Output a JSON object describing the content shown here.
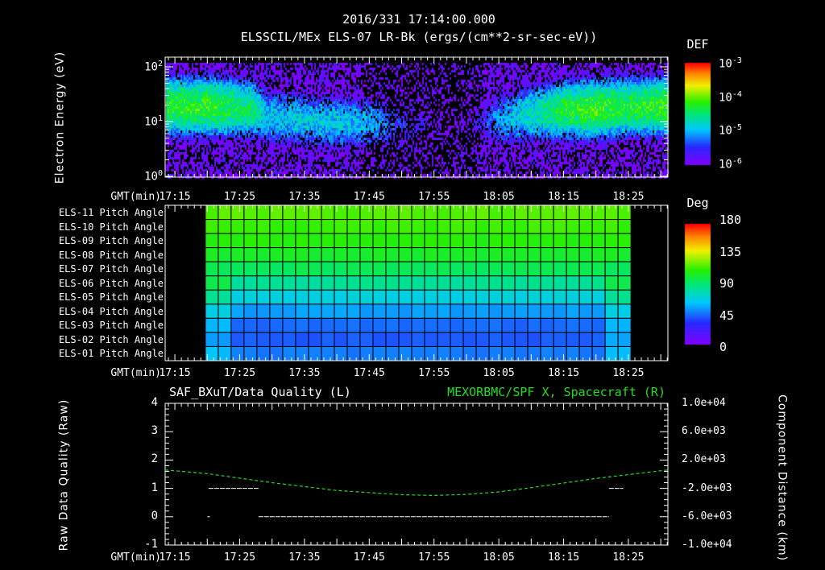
{
  "title": {
    "line1": "2016/331 17:14:00.000",
    "line2": "ELSSCIL/MEx ELS-07 LR-Bk  (ergs/(cm**2-sr-sec-eV))"
  },
  "time_axis": {
    "label": "GMT(min)",
    "ticks": [
      "17:15",
      "17:25",
      "17:35",
      "17:45",
      "17:55",
      "18:05",
      "18:15",
      "18:25"
    ],
    "tick_minutes": [
      15,
      25,
      35,
      45,
      55,
      65,
      75,
      85
    ],
    "range_minutes": [
      13.5,
      91.1
    ]
  },
  "chart_data": [
    {
      "type": "heatmap",
      "name": "electron-spectrogram",
      "ylabel": "Electron Energy (eV)",
      "yscale": "log",
      "ylim": [
        1,
        150
      ],
      "yticks": [
        {
          "base": "10",
          "exp": "0"
        },
        {
          "base": "10",
          "exp": "1"
        },
        {
          "base": "10",
          "exp": "2"
        }
      ],
      "colorbar": {
        "title": "DEF",
        "ticks": [
          {
            "base": "10",
            "exp": "-3"
          },
          {
            "base": "10",
            "exp": "-4"
          },
          {
            "base": "10",
            "exp": "-5"
          },
          {
            "base": "10",
            "exp": "-6"
          }
        ],
        "range_log": [
          -6,
          -3
        ]
      },
      "band_profile": {
        "minutes": [
          13.5,
          20,
          27,
          29,
          40,
          46,
          50,
          54,
          56,
          60,
          66,
          70,
          75,
          80,
          86,
          91.1
        ],
        "peak_log_def": [
          -4.3,
          -4.2,
          -4.5,
          -4.9,
          -4.9,
          -5.1,
          -5.6,
          -5.8,
          -6.5,
          -5.9,
          -5.0,
          -4.7,
          -4.3,
          -4.2,
          -4.3,
          -4.2
        ],
        "center_ev": [
          20,
          20,
          18,
          13,
          10,
          10,
          9,
          9,
          9,
          10,
          12,
          15,
          17,
          18,
          20,
          20
        ]
      }
    },
    {
      "type": "heatmap",
      "name": "pitch-angle",
      "colorbar": {
        "title": "Deg",
        "ticks": [
          "180",
          "135",
          "90",
          "45",
          "0"
        ],
        "range": [
          0,
          180
        ]
      },
      "rows": [
        "ELS-11 Pitch Angle",
        "ELS-10 Pitch Angle",
        "ELS-09 Pitch Angle",
        "ELS-08 Pitch Angle",
        "ELS-07 Pitch Angle",
        "ELS-06 Pitch Angle",
        "ELS-05 Pitch Angle",
        "ELS-04 Pitch Angle",
        "ELS-03 Pitch Angle",
        "ELS-02 Pitch Angle",
        "ELS-01 Pitch Angle"
      ],
      "row_values_deg": [
        118,
        114,
        110,
        104,
        96,
        84,
        70,
        55,
        45,
        42,
        48
      ],
      "data_start_minute": 19.7,
      "data_end_minute": 85.4
    },
    {
      "type": "line",
      "name": "data-quality",
      "left": {
        "title": "SAF_BXuT/Data Quality (L)",
        "ylabel": "Raw Data Quality (Raw)",
        "ylim": [
          -1,
          4
        ],
        "yticks": [
          "4",
          "3",
          "2",
          "1",
          "0",
          "-1"
        ],
        "segments": [
          {
            "x": [
              20.2,
              27.9
            ],
            "y": 1
          },
          {
            "x": [
              27.9,
              82.0
            ],
            "y": 0
          },
          {
            "x": [
              82.0,
              84.2
            ],
            "y": 1
          },
          {
            "x": [
              20.0,
              20.4
            ],
            "y": 0
          }
        ]
      },
      "right": {
        "title": "MEXORBMC/SPF X, Spacecraft (R)",
        "ylabel": "Component Distance (km)",
        "ylim": [
          -10000,
          10000
        ],
        "yticks": [
          "1.0e+04",
          "6.0e+03",
          "2.0e+03",
          "-2.0e+03",
          "-6.0e+03",
          "-1.0e+04"
        ],
        "color": "#22dd22",
        "x": [
          13.5,
          20,
          30,
          40,
          50,
          55,
          60,
          65,
          70,
          80,
          91.1
        ],
        "y": [
          600,
          80,
          -1200,
          -2300,
          -2900,
          -3000,
          -2850,
          -2500,
          -1900,
          -600,
          600
        ]
      }
    }
  ]
}
